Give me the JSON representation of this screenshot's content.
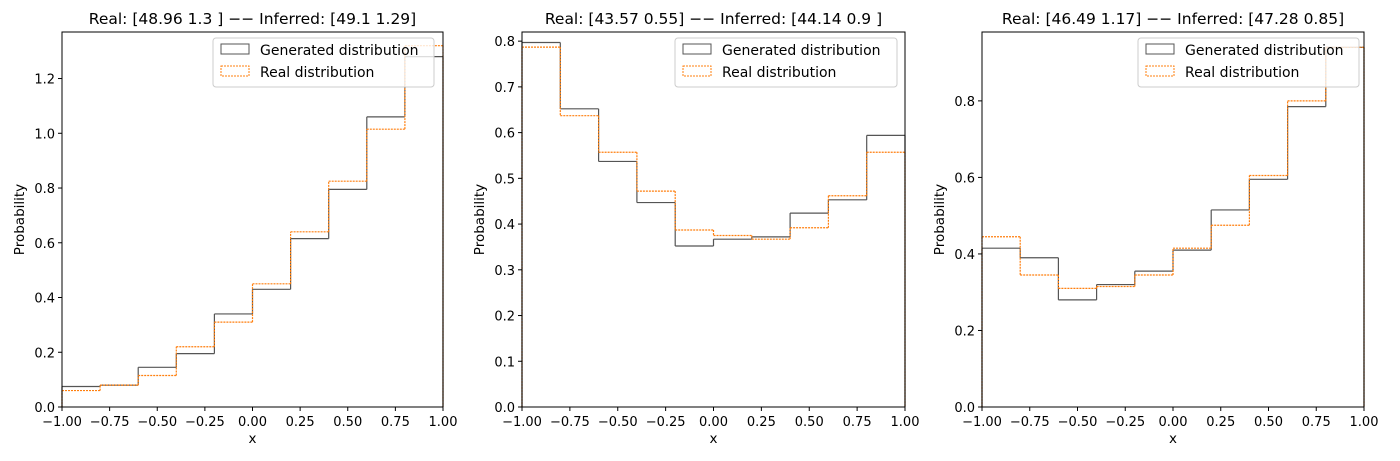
{
  "colors": {
    "generated": "#555555",
    "real": "#ff7f0e",
    "axis": "#000000",
    "legend_border": "#cccccc"
  },
  "chart_data": [
    {
      "type": "histogram-step",
      "title": "Real: [48.96  1.3 ] −− Inferred: [49.1   1.29]",
      "xlabel": "x",
      "ylabel": "Probability",
      "xlim": [
        -1.0,
        1.0
      ],
      "ylim": [
        0,
        1.37
      ],
      "xticks": [
        -1.0,
        -0.75,
        -0.5,
        -0.25,
        0.0,
        0.25,
        0.5,
        0.75,
        1.0
      ],
      "xtick_labels": [
        "−1.00",
        "−0.75",
        "−0.50",
        "−0.25",
        "0.00",
        "0.25",
        "0.50",
        "0.75",
        "1.00"
      ],
      "yticks": [
        0.0,
        0.2,
        0.4,
        0.6,
        0.8,
        1.0,
        1.2
      ],
      "ytick_labels": [
        "0.0",
        "0.2",
        "0.4",
        "0.6",
        "0.8",
        "1.0",
        "1.2"
      ],
      "bin_edges": [
        -1.0,
        -0.8,
        -0.6,
        -0.4,
        -0.2,
        0.0,
        0.2,
        0.4,
        0.6,
        0.8,
        1.0
      ],
      "legend": "top-right",
      "grid": false,
      "series": [
        {
          "name": "Generated distribution",
          "values": [
            0.075,
            0.08,
            0.145,
            0.195,
            0.34,
            0.43,
            0.615,
            0.795,
            1.06,
            1.28
          ]
        },
        {
          "name": "Real distribution",
          "values": [
            0.06,
            0.08,
            0.115,
            0.22,
            0.31,
            0.45,
            0.64,
            0.825,
            1.015,
            1.32
          ]
        }
      ]
    },
    {
      "type": "histogram-step",
      "title": "Real: [43.57  0.55] −− Inferred: [44.14  0.9 ]",
      "xlabel": "x",
      "ylabel": "Probability",
      "xlim": [
        -1.0,
        1.0
      ],
      "ylim": [
        0,
        0.82
      ],
      "xticks": [
        -1.0,
        -0.75,
        -0.5,
        -0.25,
        0.0,
        0.25,
        0.5,
        0.75,
        1.0
      ],
      "xtick_labels": [
        "−1.00",
        "−0.75",
        "−0.50",
        "−0.25",
        "0.00",
        "0.25",
        "0.50",
        "0.75",
        "1.00"
      ],
      "yticks": [
        0.0,
        0.1,
        0.2,
        0.3,
        0.4,
        0.5,
        0.6,
        0.7,
        0.8
      ],
      "ytick_labels": [
        "0.0",
        "0.1",
        "0.2",
        "0.3",
        "0.4",
        "0.5",
        "0.6",
        "0.7",
        "0.8"
      ],
      "bin_edges": [
        -1.0,
        -0.8,
        -0.6,
        -0.4,
        -0.2,
        0.0,
        0.2,
        0.4,
        0.6,
        0.8,
        1.0
      ],
      "legend": "top-right",
      "grid": false,
      "series": [
        {
          "name": "Generated distribution",
          "values": [
            0.797,
            0.652,
            0.537,
            0.447,
            0.352,
            0.367,
            0.372,
            0.424,
            0.453,
            0.594
          ]
        },
        {
          "name": "Real distribution",
          "values": [
            0.787,
            0.637,
            0.557,
            0.472,
            0.387,
            0.375,
            0.367,
            0.392,
            0.462,
            0.557
          ]
        }
      ]
    },
    {
      "type": "histogram-step",
      "title": "Real: [46.49  1.17] −− Inferred: [47.28  0.85]",
      "xlabel": "x",
      "ylabel": "Probability",
      "xlim": [
        -1.0,
        1.0
      ],
      "ylim": [
        0,
        0.98
      ],
      "xticks": [
        -1.0,
        -0.75,
        -0.5,
        -0.25,
        0.0,
        0.25,
        0.5,
        0.75,
        1.0
      ],
      "xtick_labels": [
        "−1.00",
        "−0.75",
        "−0.50",
        "−0.25",
        "0.00",
        "0.25",
        "0.50",
        "0.75",
        "1.00"
      ],
      "yticks": [
        0.0,
        0.2,
        0.4,
        0.6,
        0.8
      ],
      "ytick_labels": [
        "0.0",
        "0.2",
        "0.4",
        "0.6",
        "0.8"
      ],
      "bin_edges": [
        -1.0,
        -0.8,
        -0.6,
        -0.4,
        -0.2,
        0.0,
        0.2,
        0.4,
        0.6,
        0.8,
        1.0
      ],
      "legend": "top-right",
      "grid": false,
      "series": [
        {
          "name": "Generated distribution",
          "values": [
            0.415,
            0.39,
            0.28,
            0.32,
            0.355,
            0.41,
            0.515,
            0.595,
            0.785,
            0.94
          ]
        },
        {
          "name": "Real distribution",
          "values": [
            0.445,
            0.345,
            0.31,
            0.315,
            0.345,
            0.415,
            0.475,
            0.605,
            0.8,
            0.94
          ]
        }
      ]
    }
  ]
}
